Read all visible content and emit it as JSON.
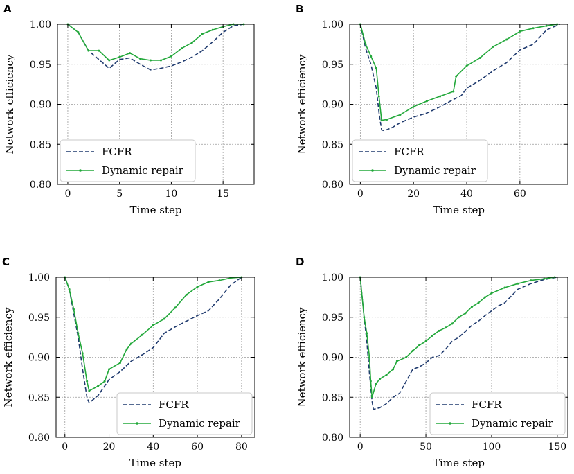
{
  "chart_data": [
    {
      "panel": "A",
      "type": "line",
      "xlabel": "Time step",
      "ylabel": "Network efficiency",
      "xlim": [
        -1,
        18
      ],
      "ylim": [
        0.8,
        1.0
      ],
      "xticks": [
        0,
        5,
        10,
        15
      ],
      "yticks": [
        0.8,
        0.85,
        0.9,
        0.95,
        1.0
      ],
      "ytick_labels": [
        "0.80",
        "0.85",
        "0.90",
        "0.95",
        "1.00"
      ],
      "grid": true,
      "legend_position": "lower-left",
      "series": [
        {
          "name": "FCFR",
          "style": "dashed",
          "color": "#1f3a6e",
          "x": [
            0,
            1,
            2,
            3,
            4,
            5,
            6,
            7,
            8,
            9,
            10,
            11,
            12,
            13,
            14,
            15,
            16,
            17
          ],
          "y": [
            1.0,
            0.99,
            0.967,
            0.956,
            0.945,
            0.956,
            0.958,
            0.95,
            0.943,
            0.945,
            0.948,
            0.953,
            0.959,
            0.967,
            0.978,
            0.99,
            0.998,
            1.0
          ]
        },
        {
          "name": "Dynamic repair",
          "style": "solid-marker",
          "color": "#22a83a",
          "x": [
            0,
            1,
            2,
            3,
            4,
            5,
            6,
            7,
            8,
            9,
            10,
            11,
            12,
            13,
            14,
            15,
            16,
            17
          ],
          "y": [
            1.0,
            0.99,
            0.967,
            0.967,
            0.955,
            0.959,
            0.964,
            0.957,
            0.955,
            0.955,
            0.96,
            0.97,
            0.977,
            0.988,
            0.993,
            0.997,
            1.0,
            1.0
          ]
        }
      ]
    },
    {
      "panel": "B",
      "type": "line",
      "xlabel": "Time step",
      "ylabel": "Network efficiency",
      "xlim": [
        -4,
        78
      ],
      "ylim": [
        0.8,
        1.0
      ],
      "xticks": [
        0,
        20,
        40,
        60
      ],
      "yticks": [
        0.8,
        0.85,
        0.9,
        0.95,
        1.0
      ],
      "ytick_labels": [
        "0.80",
        "0.85",
        "0.90",
        "0.95",
        "1.00"
      ],
      "grid": true,
      "legend_position": "lower-left",
      "series": [
        {
          "name": "FCFR",
          "style": "dashed",
          "color": "#1f3a6e",
          "x": [
            0,
            2,
            4,
            6,
            7,
            8,
            9,
            12,
            15,
            20,
            25,
            30,
            35,
            38,
            40,
            45,
            50,
            55,
            60,
            65,
            70,
            75
          ],
          "y": [
            1.0,
            0.97,
            0.95,
            0.92,
            0.89,
            0.868,
            0.867,
            0.871,
            0.877,
            0.884,
            0.889,
            0.897,
            0.906,
            0.911,
            0.92,
            0.93,
            0.942,
            0.952,
            0.968,
            0.975,
            0.993,
            1.0
          ]
        },
        {
          "name": "Dynamic repair",
          "style": "solid-marker",
          "color": "#22a83a",
          "x": [
            0,
            2,
            4,
            6,
            7,
            8,
            10,
            15,
            20,
            25,
            30,
            35,
            36,
            40,
            45,
            50,
            55,
            60,
            65,
            70,
            74
          ],
          "y": [
            1.0,
            0.975,
            0.96,
            0.945,
            0.91,
            0.88,
            0.881,
            0.887,
            0.897,
            0.904,
            0.91,
            0.916,
            0.935,
            0.948,
            0.958,
            0.972,
            0.981,
            0.991,
            0.995,
            0.998,
            1.0
          ]
        }
      ]
    },
    {
      "panel": "C",
      "type": "line",
      "xlabel": "Time step",
      "ylabel": "Network efficiency",
      "xlim": [
        -4,
        86
      ],
      "ylim": [
        0.8,
        1.0
      ],
      "xticks": [
        0,
        20,
        40,
        60,
        80
      ],
      "yticks": [
        0.8,
        0.85,
        0.9,
        0.95,
        1.0
      ],
      "ytick_labels": [
        "0.80",
        "0.85",
        "0.90",
        "0.95",
        "1.00"
      ],
      "grid": true,
      "legend_position": "lower-right",
      "series": [
        {
          "name": "FCFR",
          "style": "dashed",
          "color": "#1f3a6e",
          "x": [
            0,
            2,
            4,
            6,
            8,
            10,
            11,
            15,
            20,
            25,
            30,
            35,
            40,
            45,
            50,
            55,
            60,
            65,
            70,
            75,
            80
          ],
          "y": [
            1.0,
            0.985,
            0.955,
            0.925,
            0.885,
            0.85,
            0.843,
            0.852,
            0.872,
            0.882,
            0.895,
            0.903,
            0.912,
            0.93,
            0.938,
            0.945,
            0.952,
            0.958,
            0.973,
            0.99,
            1.0
          ]
        },
        {
          "name": "Dynamic repair",
          "style": "solid-marker",
          "color": "#22a83a",
          "x": [
            0,
            2,
            4,
            6,
            8,
            10,
            11,
            15,
            18,
            20,
            25,
            28,
            30,
            35,
            40,
            45,
            50,
            55,
            60,
            65,
            70,
            75,
            80
          ],
          "y": [
            1.0,
            0.985,
            0.96,
            0.93,
            0.905,
            0.87,
            0.858,
            0.864,
            0.87,
            0.885,
            0.893,
            0.91,
            0.917,
            0.928,
            0.94,
            0.948,
            0.962,
            0.978,
            0.988,
            0.994,
            0.996,
            0.999,
            1.0
          ]
        }
      ]
    },
    {
      "panel": "D",
      "type": "line",
      "xlabel": "Time step",
      "ylabel": "Network efficiency",
      "xlim": [
        -8,
        158
      ],
      "ylim": [
        0.8,
        1.0
      ],
      "xticks": [
        0,
        50,
        100,
        150
      ],
      "yticks": [
        0.8,
        0.85,
        0.9,
        0.95,
        1.0
      ],
      "ytick_labels": [
        "0.80",
        "0.85",
        "0.90",
        "0.95",
        "1.00"
      ],
      "grid": true,
      "legend_position": "lower-right",
      "series": [
        {
          "name": "FCFR",
          "style": "dashed",
          "color": "#1f3a6e",
          "x": [
            0,
            3,
            5,
            7,
            9,
            10,
            15,
            20,
            25,
            30,
            35,
            40,
            45,
            50,
            55,
            60,
            65,
            70,
            75,
            80,
            85,
            90,
            95,
            100,
            105,
            110,
            120,
            130,
            140,
            150
          ],
          "y": [
            1.0,
            0.95,
            0.92,
            0.88,
            0.845,
            0.835,
            0.837,
            0.842,
            0.85,
            0.855,
            0.87,
            0.885,
            0.888,
            0.893,
            0.9,
            0.902,
            0.91,
            0.92,
            0.925,
            0.932,
            0.94,
            0.945,
            0.952,
            0.958,
            0.964,
            0.968,
            0.985,
            0.992,
            0.997,
            1.0
          ]
        },
        {
          "name": "Dynamic repair",
          "style": "solid-marker",
          "color": "#22a83a",
          "x": [
            0,
            3,
            5,
            7,
            8,
            9,
            12,
            15,
            20,
            25,
            28,
            35,
            40,
            45,
            50,
            55,
            60,
            65,
            70,
            75,
            80,
            85,
            90,
            95,
            100,
            110,
            120,
            130,
            140,
            148
          ],
          "y": [
            1.0,
            0.95,
            0.93,
            0.9,
            0.87,
            0.85,
            0.867,
            0.873,
            0.878,
            0.885,
            0.895,
            0.9,
            0.908,
            0.915,
            0.92,
            0.927,
            0.933,
            0.937,
            0.942,
            0.95,
            0.955,
            0.963,
            0.968,
            0.975,
            0.98,
            0.987,
            0.992,
            0.996,
            0.998,
            1.0
          ]
        }
      ]
    }
  ]
}
